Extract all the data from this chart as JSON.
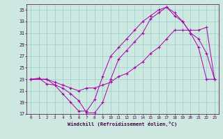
{
  "xlabel": "Windchill (Refroidissement éolien,°C)",
  "bg_color": "#cce8e0",
  "grid_color": "#99cccc",
  "line_color": "#aa00aa",
  "xlim": [
    -0.5,
    23.5
  ],
  "ylim": [
    17,
    36
  ],
  "yticks": [
    17,
    19,
    21,
    23,
    25,
    27,
    29,
    31,
    33,
    35
  ],
  "xticks": [
    0,
    1,
    2,
    3,
    4,
    5,
    6,
    7,
    8,
    9,
    10,
    11,
    12,
    13,
    14,
    15,
    16,
    17,
    18,
    19,
    20,
    21,
    22,
    23
  ],
  "line1_x": [
    0,
    1,
    2,
    3,
    4,
    5,
    6,
    7,
    8,
    9,
    10,
    11,
    12,
    13,
    14,
    15,
    16,
    17,
    18,
    19,
    20,
    21,
    22,
    23
  ],
  "line1_y": [
    23,
    23.2,
    22.2,
    22,
    20.5,
    19.0,
    17.5,
    17.5,
    19.5,
    23.5,
    27.0,
    28.5,
    30.0,
    31.5,
    33.0,
    34.0,
    35.0,
    35.5,
    34.5,
    33.0,
    31.0,
    28.5,
    23.0,
    23.0
  ],
  "line2_x": [
    0,
    2,
    3,
    4,
    5,
    6,
    7,
    8,
    9,
    10,
    11,
    12,
    13,
    14,
    15,
    16,
    17,
    18,
    19,
    20,
    21,
    22,
    23
  ],
  "line2_y": [
    23.0,
    23.0,
    22.0,
    21.5,
    20.5,
    19.3,
    17.2,
    17.2,
    19.0,
    23.0,
    26.5,
    28.0,
    29.5,
    31.0,
    33.5,
    34.5,
    35.5,
    34.0,
    33.0,
    31.0,
    30.0,
    27.5,
    23.0
  ],
  "line3_x": [
    0,
    2,
    3,
    4,
    5,
    6,
    7,
    8,
    9,
    10,
    11,
    12,
    13,
    14,
    15,
    16,
    17,
    18,
    19,
    20,
    21,
    22,
    23
  ],
  "line3_y": [
    23.0,
    23.0,
    22.5,
    22.0,
    21.5,
    21.0,
    21.5,
    21.5,
    22.0,
    22.5,
    23.5,
    24.0,
    25.0,
    26.0,
    27.5,
    28.5,
    30.0,
    31.5,
    31.5,
    31.5,
    31.5,
    32.0,
    23.0
  ]
}
